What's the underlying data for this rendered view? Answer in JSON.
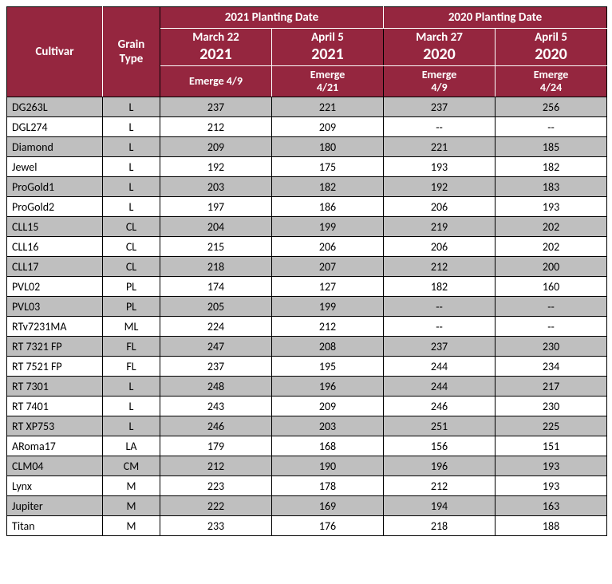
{
  "header": {
    "cultivar": "Cultivar",
    "grain_type_line1": "Grain",
    "grain_type_line2": "Type",
    "year_groups": [
      "2021 Planting Date",
      "2020 Planting Date"
    ],
    "dates": [
      {
        "month_day": "March 22",
        "year": "2021",
        "emerge": "Emerge 4/9"
      },
      {
        "month_day": "April 5",
        "year": "2021",
        "emerge_l1": "Emerge",
        "emerge_l2": "4/21"
      },
      {
        "month_day": "March 27",
        "year": "2020",
        "emerge_l1": "Emerge",
        "emerge_l2": "4/9"
      },
      {
        "month_day": "April 5",
        "year": "2020",
        "emerge_l1": "Emerge",
        "emerge_l2": "4/24"
      }
    ]
  },
  "colors": {
    "header_bg": "#95263f",
    "header_fg": "#ffffff",
    "row_odd_bg": "#bfbfbf",
    "row_even_bg": "#ffffff",
    "border": "#000000"
  },
  "rows": [
    {
      "cultivar": "DG263L",
      "grain": "L",
      "v": [
        "237",
        "221",
        "237",
        "256"
      ]
    },
    {
      "cultivar": "DGL274",
      "grain": "L",
      "v": [
        "212",
        "209",
        "--",
        "--"
      ]
    },
    {
      "cultivar": "Diamond",
      "grain": "L",
      "v": [
        "209",
        "180",
        "221",
        "185"
      ]
    },
    {
      "cultivar": "Jewel",
      "grain": "L",
      "v": [
        "192",
        "175",
        "193",
        "182"
      ]
    },
    {
      "cultivar": "ProGold1",
      "grain": "L",
      "v": [
        "203",
        "182",
        "192",
        "183"
      ]
    },
    {
      "cultivar": "ProGold2",
      "grain": "L",
      "v": [
        "197",
        "186",
        "206",
        "193"
      ]
    },
    {
      "cultivar": "CLL15",
      "grain": "CL",
      "v": [
        "204",
        "199",
        "219",
        "202"
      ]
    },
    {
      "cultivar": "CLL16",
      "grain": "CL",
      "v": [
        "215",
        "206",
        "206",
        "202"
      ]
    },
    {
      "cultivar": "CLL17",
      "grain": "CL",
      "v": [
        "218",
        "207",
        "212",
        "200"
      ]
    },
    {
      "cultivar": "PVL02",
      "grain": "PL",
      "v": [
        "174",
        "127",
        "182",
        "160"
      ]
    },
    {
      "cultivar": "PVL03",
      "grain": "PL",
      "v": [
        "205",
        "199",
        "--",
        "--"
      ]
    },
    {
      "cultivar": "RTv7231MA",
      "grain": "ML",
      "v": [
        "224",
        "212",
        "--",
        "--"
      ]
    },
    {
      "cultivar": "RT 7321 FP",
      "grain": "FL",
      "v": [
        "247",
        "208",
        "237",
        "230"
      ]
    },
    {
      "cultivar": "RT 7521 FP",
      "grain": "FL",
      "v": [
        "237",
        "195",
        "244",
        "234"
      ]
    },
    {
      "cultivar": "RT 7301",
      "grain": "L",
      "v": [
        "248",
        "196",
        "244",
        "217"
      ]
    },
    {
      "cultivar": "RT 7401",
      "grain": "L",
      "v": [
        "243",
        "209",
        "246",
        "230"
      ]
    },
    {
      "cultivar": "RT XP753",
      "grain": "L",
      "v": [
        "246",
        "203",
        "251",
        "225"
      ]
    },
    {
      "cultivar": "ARoma17",
      "grain": "LA",
      "v": [
        "179",
        "168",
        "156",
        "151"
      ]
    },
    {
      "cultivar": "CLM04",
      "grain": "CM",
      "v": [
        "212",
        "190",
        "196",
        "193"
      ]
    },
    {
      "cultivar": "Lynx",
      "grain": "M",
      "v": [
        "223",
        "178",
        "212",
        "193"
      ]
    },
    {
      "cultivar": "Jupiter",
      "grain": "M",
      "v": [
        "222",
        "169",
        "194",
        "163"
      ]
    },
    {
      "cultivar": "Titan",
      "grain": "M",
      "v": [
        "233",
        "176",
        "218",
        "188"
      ]
    }
  ]
}
